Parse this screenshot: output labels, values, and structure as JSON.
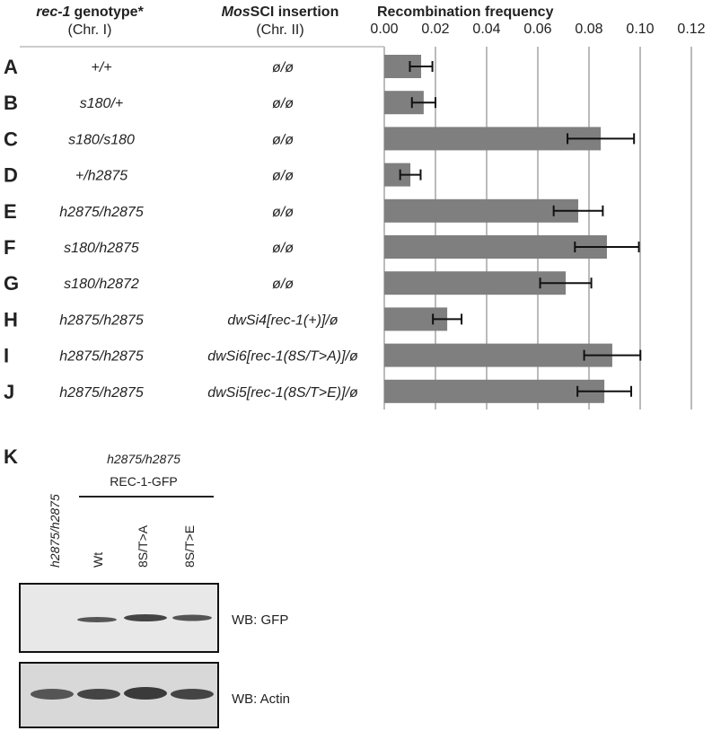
{
  "chart_data": {
    "type": "bar",
    "orientation": "horizontal",
    "title": "Recombination frequency",
    "categories": [
      "A",
      "B",
      "C",
      "D",
      "E",
      "F",
      "G",
      "H",
      "I",
      "J"
    ],
    "values": [
      0.0144,
      0.0154,
      0.0846,
      0.0102,
      0.0758,
      0.087,
      0.0709,
      0.0246,
      0.0891,
      0.086
    ],
    "errors": [
      0.0044,
      0.0046,
      0.013,
      0.004,
      0.0096,
      0.0125,
      0.01,
      0.0056,
      0.011,
      0.0105
    ],
    "color": "#7f7f7f",
    "xlim": [
      0,
      0.12
    ],
    "xticks": [
      {
        "value": 0,
        "label": "0.00"
      },
      {
        "value": 0.02,
        "label": "0.02"
      },
      {
        "value": 0.04,
        "label": "0.04"
      },
      {
        "value": 0.06,
        "label": "0.06"
      },
      {
        "value": 0.08,
        "label": "0.08"
      },
      {
        "value": 0.1,
        "label": "0.10"
      },
      {
        "value": 0.12,
        "label": "0.12"
      }
    ],
    "grid": true
  },
  "table": {
    "headers": [
      {
        "italic": "rec-1",
        "text": "genotype*",
        "sub": "(Chr. I)"
      },
      {
        "italic": "Mos",
        "text": "SCI insertion",
        "sub": "(Chr. II)"
      }
    ],
    "rows": [
      [
        "+/+",
        "ø/ø"
      ],
      [
        "s180/+",
        "ø/ø"
      ],
      [
        "s180/s180",
        "ø/ø"
      ],
      [
        "+/h2875",
        "ø/ø"
      ],
      [
        "h2875/h2875",
        "ø/ø"
      ],
      [
        "s180/h2875",
        "ø/ø"
      ],
      [
        "s180/h2872",
        "ø/ø"
      ],
      [
        "h2875/h2875",
        "dwSi4[rec-1(+)]/ø"
      ],
      [
        "h2875/h2875",
        "dwSi6[rec-1(8S/T>A)]/ø"
      ],
      [
        "h2875/h2875",
        "dwSi5[rec-1(8S/T>E)]/ø"
      ]
    ]
  },
  "panel_k": {
    "label": "K",
    "genotype": "h2875/h2875",
    "construct": "REC-1-GFP",
    "lanes": [
      "h2875/h2875",
      "Wt",
      "8S/T>A",
      "8S/T>E"
    ],
    "blots": [
      "WB: GFP",
      "WB: Actin"
    ]
  }
}
